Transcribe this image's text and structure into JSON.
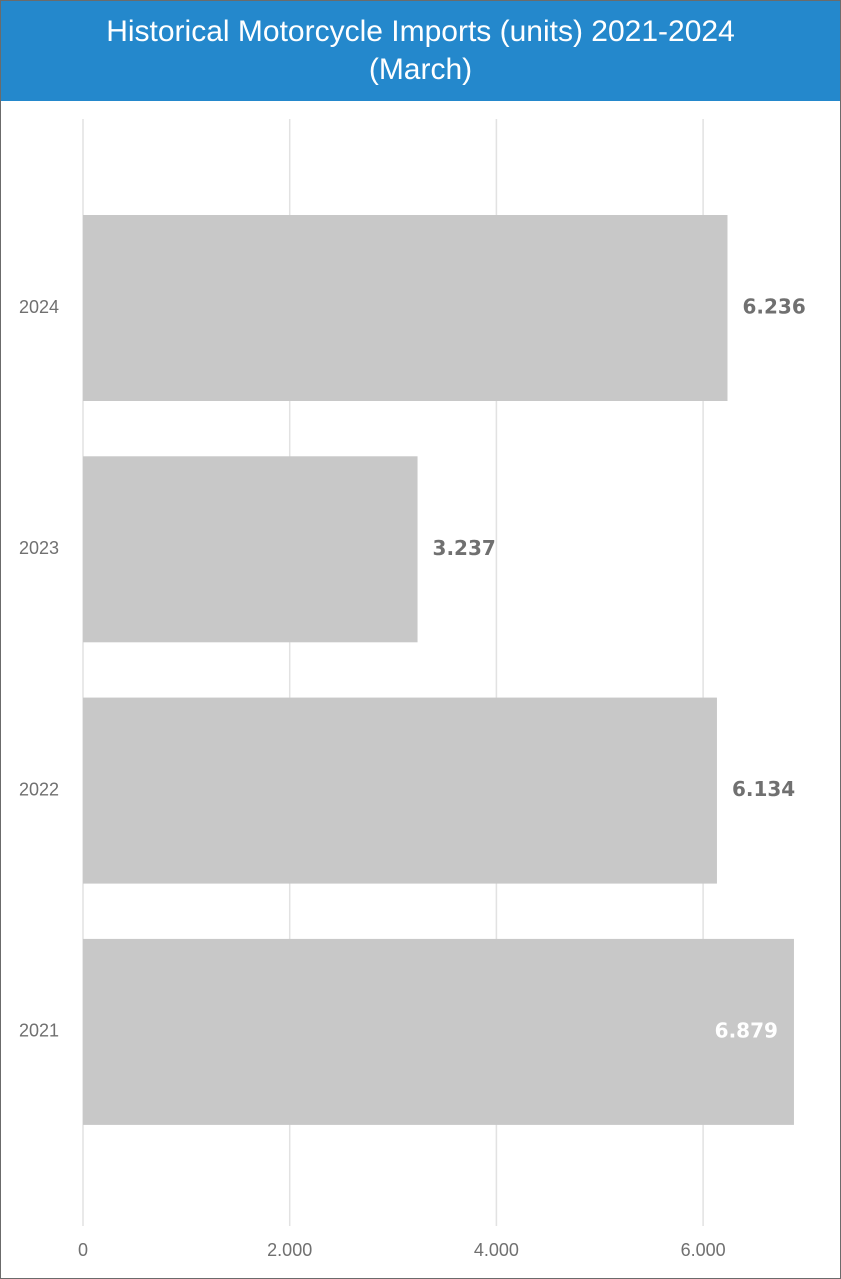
{
  "header": {
    "title": "Historical Motorcycle Imports (units) 2021-2024 (March)"
  },
  "chart_data": {
    "type": "bar",
    "orientation": "horizontal",
    "title": "Historical Motorcycle Imports (units) 2021-2024 (March)",
    "xlabel": "",
    "ylabel": "",
    "categories": [
      "2024",
      "2023",
      "2022",
      "2021"
    ],
    "values": [
      6236,
      3237,
      6134,
      6879
    ],
    "value_labels": [
      "6.236",
      "3.237",
      "6.134",
      "6.879"
    ],
    "xlim": [
      0,
      7000
    ],
    "xticks": [
      0,
      2000,
      4000,
      6000
    ],
    "xtick_labels": [
      "0",
      "2.000",
      "4.000",
      "6.000"
    ],
    "grid": true,
    "legend": "none",
    "colors": {
      "bar": "#c8c8c8",
      "gridline": "#e2e2e2",
      "title_background": "#2488cc",
      "title_text": "#ffffff",
      "label_outside": "#707070",
      "label_inside": "#ffffff"
    }
  }
}
